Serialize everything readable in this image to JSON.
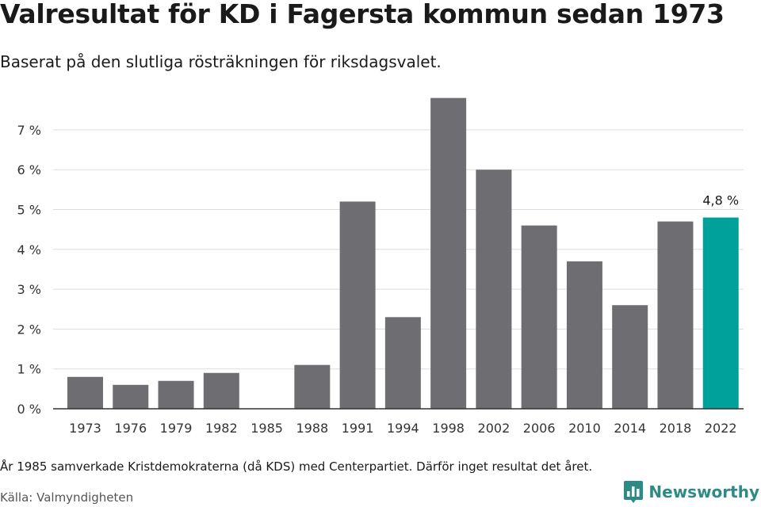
{
  "header": {
    "title": "Valresultat för KD i Fagersta kommun sedan 1973",
    "subtitle": "Baserat på den slutliga rösträkningen för riksdagsvalet."
  },
  "chart_data": {
    "type": "bar",
    "title": "Valresultat för KD i Fagersta kommun sedan 1973",
    "subtitle": "Baserat på den slutliga rösträkningen för riksdagsvalet.",
    "xlabel": "",
    "ylabel": "",
    "categories": [
      "1973",
      "1976",
      "1979",
      "1982",
      "1985",
      "1988",
      "1991",
      "1994",
      "1998",
      "2002",
      "2006",
      "2010",
      "2014",
      "2018",
      "2022"
    ],
    "values": [
      0.8,
      0.6,
      0.7,
      0.9,
      null,
      1.1,
      5.2,
      2.3,
      7.8,
      6.0,
      4.6,
      3.7,
      2.6,
      4.7,
      4.8
    ],
    "ylim": [
      0,
      8
    ],
    "yticks": [
      0,
      1,
      2,
      3,
      4,
      5,
      6,
      7
    ],
    "ytick_labels": [
      "0 %",
      "1 %",
      "2 %",
      "3 %",
      "4 %",
      "5 %",
      "6 %",
      "7 %"
    ],
    "grid": true,
    "highlight_index": 14,
    "highlight_label": "4,8 %",
    "colors": {
      "bar": "#6e6d72",
      "highlight": "#00a19a",
      "grid": "#dddddd",
      "axis": "#333333"
    }
  },
  "footer": {
    "note": "År 1985 samverkade Kristdemokraterna (då KDS) med Centerpartiet. Därför inget resultat det året.",
    "source": "Källa: Valmyndigheten",
    "brand": "Newsworthy",
    "brand_icon": "bar-chart-icon",
    "brand_color": "#2d8b85"
  }
}
